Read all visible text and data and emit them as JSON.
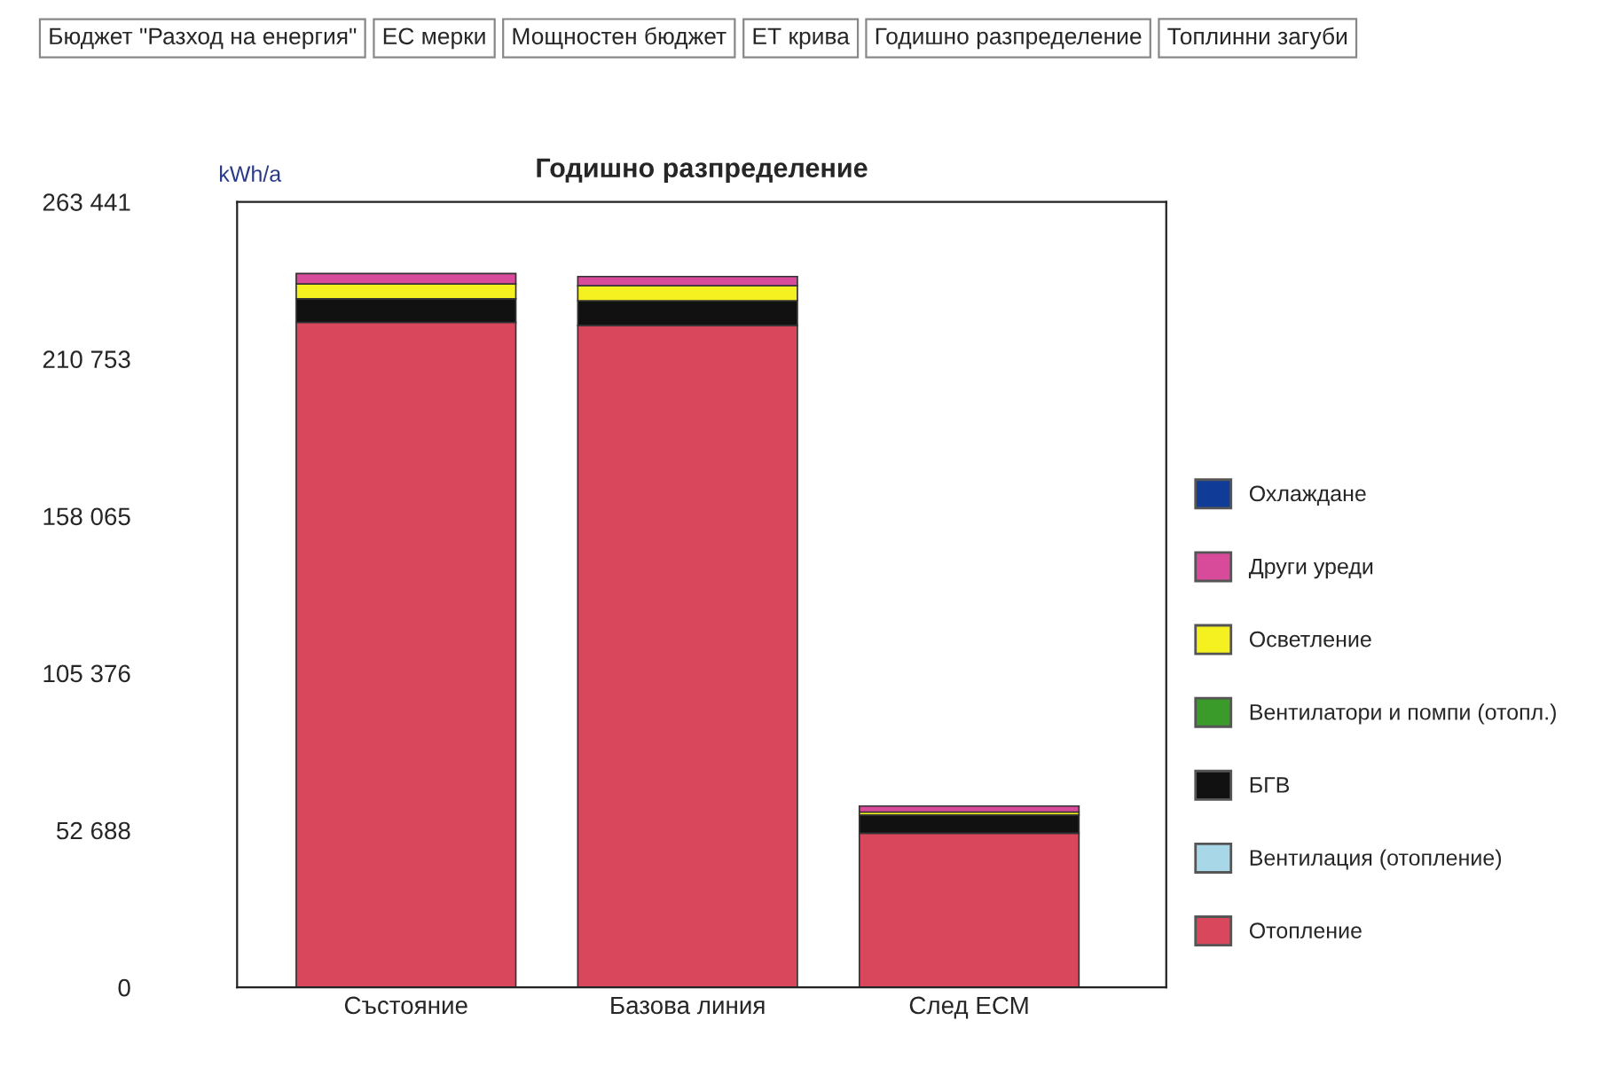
{
  "chart_data": {
    "type": "bar",
    "title": "Годишно разпределение",
    "ylabel": "kWh/a",
    "annotations": [
      "Бюджет \"Разход на енергия\"",
      "ЕС мерки",
      "Мощностен бюджет",
      "ЕТ крива",
      "Годишно разпределение",
      "Топлинни загуби"
    ],
    "categories": [
      "Състояние",
      "Базова линия",
      "След ЕСМ"
    ],
    "stacked": true,
    "series": [
      {
        "name": "Отопление",
        "color": "#d9475c",
        "values": [
          223000,
          222000,
          51700
        ]
      },
      {
        "name": "Вентилация (отопление)",
        "color": "#a8d8e8",
        "values": [
          0,
          0,
          0
        ]
      },
      {
        "name": "БГВ",
        "color": "#111111",
        "values": [
          7900,
          8300,
          6100
        ]
      },
      {
        "name": "Вентилатори и помпи (отопл.)",
        "color": "#3a9a2a",
        "values": [
          0,
          0,
          0
        ]
      },
      {
        "name": "Осветление",
        "color": "#f5f020",
        "values": [
          5000,
          5000,
          1000
        ]
      },
      {
        "name": "Други уреди",
        "color": "#d84a9a",
        "values": [
          3500,
          3100,
          2000
        ]
      },
      {
        "name": "Охлаждане",
        "color": "#103c98",
        "values": [
          0,
          0,
          0
        ]
      }
    ],
    "ylim": [
      0,
      263441
    ],
    "yticks": [
      0,
      {
        "value": 52688,
        "label": "52 688"
      },
      {
        "value": 105376,
        "label": "105 376"
      },
      {
        "value": 158065,
        "label": "158 065"
      },
      {
        "value": 210753,
        "label": "210 753"
      },
      {
        "value": 263441,
        "label": "263 441"
      }
    ],
    "grid": false,
    "legend": "right"
  }
}
